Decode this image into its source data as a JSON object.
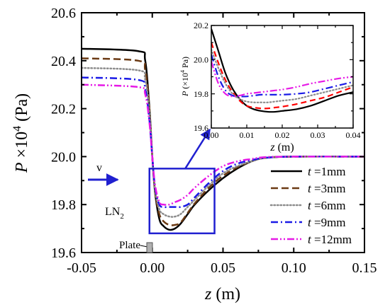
{
  "colors": {
    "t1": "#000000",
    "t3": "#6b3a14",
    "t6": "#8c8c8c",
    "t9": "#1a1ae6",
    "t12": "#e61ae6",
    "red": "#ff0000",
    "highlight": "#2020d0",
    "plate": "#b0b0b0"
  },
  "chart_data": [
    {
      "type": "line",
      "title": "",
      "xlabel": "z (m)",
      "ylabel": "P ×10^4 (Pa)",
      "xlim": [
        -0.05,
        0.15
      ],
      "ylim": [
        19.6,
        20.6
      ],
      "x_ticks": [
        "-0.05",
        "0.00",
        "0.05",
        "0.10",
        "0.15"
      ],
      "y_ticks": [
        "19.6",
        "19.8",
        "20.0",
        "20.2",
        "20.4",
        "20.6"
      ],
      "legend_position": "bottom-right",
      "series": [
        {
          "name": "t =1mm",
          "color_key": "t1",
          "dash": "solid",
          "x": [
            -0.05,
            -0.01,
            -0.005,
            -0.002,
            0.0,
            0.002,
            0.005,
            0.008,
            0.012,
            0.016,
            0.02,
            0.025,
            0.03,
            0.04,
            0.05,
            0.06,
            0.07,
            0.08,
            0.1,
            0.15
          ],
          "y": [
            20.45,
            20.44,
            20.4,
            20.2,
            20.0,
            19.85,
            19.74,
            19.71,
            19.695,
            19.7,
            19.72,
            19.76,
            19.8,
            19.86,
            19.91,
            19.95,
            19.98,
            19.995,
            20.0,
            20.0
          ]
        },
        {
          "name": "t =3mm",
          "color_key": "t3",
          "dash": "longdash",
          "x": [
            -0.05,
            -0.01,
            -0.005,
            -0.002,
            0.0,
            0.002,
            0.005,
            0.008,
            0.012,
            0.016,
            0.02,
            0.025,
            0.03,
            0.04,
            0.05,
            0.06,
            0.07,
            0.08,
            0.1,
            0.15
          ],
          "y": [
            20.41,
            20.4,
            20.36,
            20.2,
            20.0,
            19.85,
            19.76,
            19.73,
            19.715,
            19.715,
            19.725,
            19.765,
            19.805,
            19.87,
            19.92,
            19.955,
            19.98,
            19.995,
            20.0,
            20.0
          ]
        },
        {
          "name": "t =6mm",
          "color_key": "t6",
          "dash": "dotted",
          "x": [
            -0.05,
            -0.01,
            -0.005,
            -0.002,
            0.0,
            0.002,
            0.005,
            0.008,
            0.012,
            0.016,
            0.02,
            0.025,
            0.03,
            0.04,
            0.05,
            0.06,
            0.07,
            0.08,
            0.1,
            0.15
          ],
          "y": [
            20.37,
            20.36,
            20.32,
            20.18,
            20.0,
            19.86,
            19.78,
            19.76,
            19.75,
            19.75,
            19.76,
            19.79,
            19.82,
            19.88,
            19.93,
            19.96,
            19.98,
            19.995,
            20.0,
            20.0
          ]
        },
        {
          "name": "t =9mm",
          "color_key": "t9",
          "dash": "dashdot",
          "x": [
            -0.05,
            -0.01,
            -0.005,
            -0.002,
            0.0,
            0.002,
            0.005,
            0.008,
            0.012,
            0.016,
            0.02,
            0.025,
            0.03,
            0.04,
            0.05,
            0.06,
            0.07,
            0.08,
            0.1,
            0.15
          ],
          "y": [
            20.33,
            20.32,
            20.28,
            20.15,
            20.0,
            19.87,
            19.8,
            19.79,
            19.79,
            19.79,
            19.79,
            19.8,
            19.83,
            19.89,
            19.94,
            19.97,
            19.985,
            19.995,
            20.0,
            20.0
          ]
        },
        {
          "name": "t =12mm",
          "color_key": "t12",
          "dash": "dashdotdot",
          "x": [
            -0.05,
            -0.01,
            -0.005,
            -0.002,
            0.0,
            0.002,
            0.005,
            0.008,
            0.012,
            0.016,
            0.02,
            0.025,
            0.03,
            0.04,
            0.05,
            0.06,
            0.07,
            0.08,
            0.1,
            0.15
          ],
          "y": [
            20.3,
            20.29,
            20.26,
            20.14,
            20.0,
            19.88,
            19.81,
            19.8,
            19.8,
            19.81,
            19.82,
            19.84,
            19.87,
            19.92,
            19.96,
            19.98,
            19.99,
            19.998,
            20.0,
            20.0
          ]
        }
      ],
      "annotations": {
        "v_label": "v",
        "fluid_label": "LN",
        "fluid_subscript": "2",
        "plate_label": "Plate",
        "ylabel_italic": "P",
        "ylabel_mid": " ×10",
        "ylabel_exp": "4",
        "ylabel_unit": " (Pa)",
        "xlabel_italic": "z",
        "xlabel_unit": " (m)"
      },
      "highlight_box": {
        "xlim": [
          -0.002,
          0.044
        ],
        "ylim": [
          19.68,
          19.95
        ]
      }
    },
    {
      "type": "line",
      "title": "",
      "xlabel": "z (m)",
      "ylabel": "P (×10^4 Pa)",
      "xlim": [
        0.0,
        0.04
      ],
      "ylim": [
        19.6,
        20.2
      ],
      "x_ticks": [
        "0.00",
        "0.01",
        "0.02",
        "0.03",
        "0.04"
      ],
      "y_ticks": [
        "19.6",
        "19.8",
        "20.0",
        "20.2"
      ],
      "annotations": {
        "ylabel_italic": "P",
        "ylabel_mid": " (×10",
        "ylabel_exp": "4",
        "ylabel_unit": " Pa)",
        "xlabel_italic": "z",
        "xlabel_unit": " (m)"
      },
      "series": [
        {
          "name": "t =1mm",
          "color_key": "t1",
          "dash": "solid",
          "x": [
            0.0,
            0.002,
            0.004,
            0.006,
            0.008,
            0.01,
            0.012,
            0.014,
            0.016,
            0.018,
            0.02,
            0.024,
            0.028,
            0.032,
            0.036,
            0.04
          ],
          "y": [
            20.18,
            20.05,
            19.92,
            19.83,
            19.77,
            19.73,
            19.71,
            19.7,
            19.695,
            19.695,
            19.7,
            19.71,
            19.73,
            19.76,
            19.79,
            19.81
          ]
        },
        {
          "name": "t =3mm",
          "color_key": "red",
          "dash": "dashed",
          "x": [
            0.0,
            0.002,
            0.004,
            0.006,
            0.008,
            0.01,
            0.012,
            0.014,
            0.016,
            0.018,
            0.02,
            0.024,
            0.028,
            0.032,
            0.036,
            0.04
          ],
          "y": [
            20.1,
            19.98,
            19.88,
            19.81,
            19.76,
            19.73,
            19.72,
            19.715,
            19.715,
            19.72,
            19.725,
            19.74,
            19.76,
            19.78,
            19.81,
            19.84
          ]
        },
        {
          "name": "t =6mm",
          "color_key": "t6",
          "dash": "dotted",
          "x": [
            0.0,
            0.002,
            0.004,
            0.006,
            0.008,
            0.01,
            0.012,
            0.014,
            0.016,
            0.018,
            0.02,
            0.024,
            0.028,
            0.032,
            0.036,
            0.04
          ],
          "y": [
            20.06,
            19.95,
            19.86,
            19.8,
            19.77,
            19.755,
            19.75,
            19.75,
            19.75,
            19.755,
            19.76,
            19.77,
            19.79,
            19.81,
            19.83,
            19.85
          ]
        },
        {
          "name": "t =9mm",
          "color_key": "t9",
          "dash": "dashdot",
          "x": [
            0.0,
            0.002,
            0.004,
            0.006,
            0.008,
            0.01,
            0.012,
            0.014,
            0.016,
            0.018,
            0.02,
            0.024,
            0.028,
            0.032,
            0.036,
            0.04
          ],
          "y": [
            20.03,
            19.9,
            19.82,
            19.79,
            19.785,
            19.785,
            19.79,
            19.795,
            19.795,
            19.795,
            19.795,
            19.8,
            19.81,
            19.83,
            19.85,
            19.87
          ]
        },
        {
          "name": "t =12mm",
          "color_key": "t12",
          "dash": "dashdotdot",
          "x": [
            0.0,
            0.002,
            0.004,
            0.006,
            0.008,
            0.01,
            0.012,
            0.014,
            0.016,
            0.018,
            0.02,
            0.024,
            0.028,
            0.032,
            0.036,
            0.04
          ],
          "y": [
            19.99,
            19.86,
            19.8,
            19.785,
            19.79,
            19.8,
            19.805,
            19.81,
            19.815,
            19.82,
            19.825,
            19.84,
            19.86,
            19.875,
            19.89,
            19.9
          ]
        }
      ]
    }
  ]
}
